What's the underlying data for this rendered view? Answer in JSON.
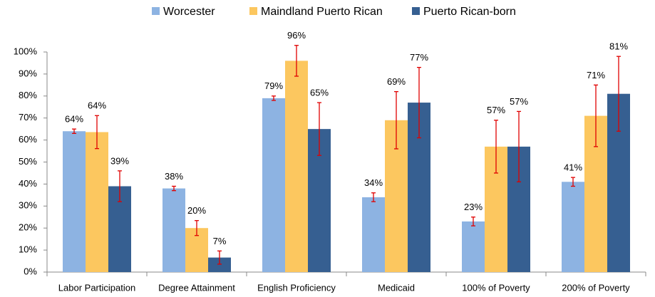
{
  "chart_data": {
    "type": "bar",
    "categories": [
      "Labor Participation",
      "Degree Attainment",
      "English Proficiency",
      "Medicaid",
      "100% of Poverty",
      "200% of Poverty"
    ],
    "series": [
      {
        "name": "Worcester",
        "color": "#8db3e2",
        "values": [
          64,
          38,
          79,
          34,
          23,
          41
        ],
        "errors": [
          1,
          1,
          1,
          2,
          2,
          2
        ],
        "value_labels": [
          "64%",
          "38%",
          "79%",
          "34%",
          "23%",
          "41%"
        ]
      },
      {
        "name": "Maindland Puerto Rican",
        "color": "#fcc75f",
        "values": [
          63.6,
          20,
          96,
          69,
          57,
          71
        ],
        "errors": [
          7.5,
          3.4,
          7,
          13,
          12,
          14
        ],
        "value_labels": [
          "64%",
          "20%",
          "96%",
          "69%",
          "57%",
          "71%"
        ]
      },
      {
        "name": "Puerto Rican-born",
        "color": "#365f91",
        "values": [
          39,
          6.6,
          65,
          77,
          57,
          81
        ],
        "errors": [
          7,
          3,
          12,
          16,
          16,
          17
        ],
        "value_labels": [
          "39%",
          "7%",
          "65%",
          "77%",
          "57%",
          "81%"
        ]
      }
    ],
    "error_color": "#e00000",
    "ylim": [
      0,
      100
    ],
    "yticks": [
      {
        "value": 0,
        "label": "0%"
      },
      {
        "value": 10,
        "label": "10%"
      },
      {
        "value": 20,
        "label": "20%"
      },
      {
        "value": 30,
        "label": "30%"
      },
      {
        "value": 40,
        "label": "40%"
      },
      {
        "value": 50,
        "label": "50%"
      },
      {
        "value": 60,
        "label": "60%"
      },
      {
        "value": 70,
        "label": "70%"
      },
      {
        "value": 80,
        "label": "80%"
      },
      {
        "value": 90,
        "label": "90%"
      },
      {
        "value": 100,
        "label": "100%"
      }
    ],
    "grid": false,
    "legend": "top"
  }
}
